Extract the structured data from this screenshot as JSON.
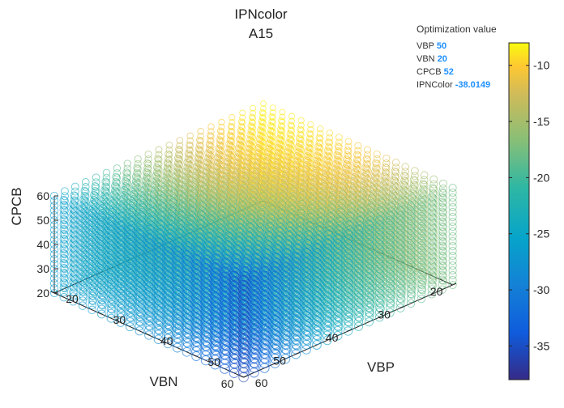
{
  "chart_data": {
    "type": "scatter3d",
    "title": [
      "IPNcolor",
      "A15"
    ],
    "xlabel": "VBP",
    "ylabel": "VBN",
    "zlabel": "CPCB",
    "x_ticks": [
      "20",
      "30",
      "40",
      "50",
      "60"
    ],
    "y_ticks": [
      "20",
      "30",
      "40",
      "50",
      "60"
    ],
    "z_ticks": [
      "20",
      "30",
      "40",
      "50",
      "60"
    ],
    "x_range": [
      20,
      60
    ],
    "y_range": [
      20,
      60
    ],
    "z_range": [
      20,
      60
    ],
    "grid_step": 2,
    "marker": "open-circle",
    "colormap": "parula",
    "colorbar": {
      "title": "Optimization value",
      "range": [
        -38,
        -8
      ],
      "ticks": [
        "-10",
        "-15",
        "-20",
        "-25",
        "-30",
        "-35"
      ],
      "tick_values": [
        -10,
        -15,
        -20,
        -25,
        -30,
        -35
      ]
    },
    "datatip": {
      "rows": [
        {
          "label": "VBP",
          "value": "50"
        },
        {
          "label": "VBN",
          "value": "20"
        },
        {
          "label": "CPCB",
          "value": "52"
        },
        {
          "label": "IPNColor",
          "value": "-38.0149"
        }
      ]
    }
  }
}
